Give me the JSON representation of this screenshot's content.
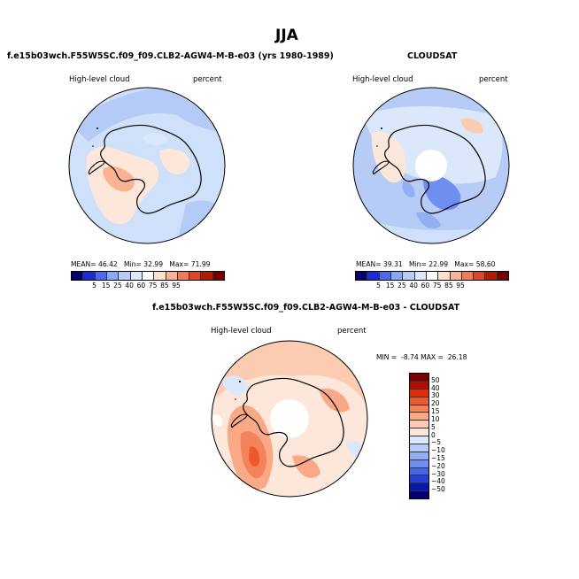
{
  "figure": {
    "season_title": "JJA",
    "model_title": "f.e15b03wch.F55W5SC.f09_f09.CLB2-AGW4-M-B-e03 (yrs 1980-1989)",
    "obs_title": "CLOUDSAT",
    "diff_title": "f.e15b03wch.F55W5SC.f09_f09.CLB2-AGW4-M-B-e03 - CLOUDSAT"
  },
  "panels": {
    "model": {
      "variable": "High-level cloud",
      "units": "percent",
      "stats_text": {
        "mean_label": "MEAN=",
        "mean": "46.42",
        "min_label": "Min=",
        "min": "32.99",
        "max_label": "Max=",
        "max": "71.99"
      }
    },
    "obs": {
      "variable": "High-level cloud",
      "units": "percent",
      "stats_text": {
        "mean_label": "MEAN=",
        "mean": "39.31",
        "min_label": "Min=",
        "min": "22.99",
        "max_label": "Max=",
        "max": "58.60"
      }
    },
    "diff": {
      "variable": "High-level cloud",
      "units": "percent",
      "minmax_text": "MIN =  -8.74 MAX =  26.18"
    }
  },
  "chart_data": [
    {
      "type": "heatmap",
      "title": "High-level cloud (model)",
      "units": "percent",
      "projection": "south polar stereographic",
      "region": "Antarctica / Southern Ocean",
      "mean": 46.42,
      "min": 32.99,
      "max": 71.99,
      "colorbar_levels": [
        5,
        15,
        25,
        40,
        60,
        75,
        85,
        95
      ],
      "colorbar_tick_labels": [
        "5",
        "15",
        "25",
        "40",
        "60",
        "75",
        "85",
        "95"
      ],
      "colorbar_colors": [
        "#08006a",
        "#1c2ad0",
        "#4a6af0",
        "#86a8f6",
        "#b6cdf8",
        "#dbe8fb",
        "#ffffff",
        "#fde0cb",
        "#f9b292",
        "#f07c56",
        "#dd4727",
        "#b01c0a",
        "#760000"
      ]
    },
    {
      "type": "heatmap",
      "title": "High-level cloud (CLOUDSAT)",
      "units": "percent",
      "projection": "south polar stereographic",
      "region": "Antarctica / Southern Ocean",
      "mean": 39.31,
      "min": 22.99,
      "max": 58.6,
      "colorbar_levels": [
        5,
        15,
        25,
        40,
        60,
        75,
        85,
        95
      ],
      "colorbar_tick_labels": [
        "5",
        "15",
        "25",
        "40",
        "60",
        "75",
        "85",
        "95"
      ],
      "colorbar_colors": [
        "#08006a",
        "#1c2ad0",
        "#4a6af0",
        "#86a8f6",
        "#b6cdf8",
        "#dbe8fb",
        "#ffffff",
        "#fde0cb",
        "#f9b292",
        "#f07c56",
        "#dd4727",
        "#b01c0a",
        "#760000"
      ]
    },
    {
      "type": "heatmap",
      "title": "High-level cloud (model - CLOUDSAT)",
      "units": "percent",
      "projection": "south polar stereographic",
      "region": "Antarctica / Southern Ocean",
      "min": -8.74,
      "max": 26.18,
      "colorbar_levels": [
        50,
        40,
        30,
        20,
        15,
        10,
        5,
        0,
        -5,
        -10,
        -15,
        -20,
        -30,
        -40,
        -50
      ],
      "colorbar_tick_labels": [
        "50",
        "40",
        "30",
        "20",
        "15",
        "10",
        "5",
        "0",
        "−5",
        "−10",
        "−15",
        "−20",
        "−30",
        "−40",
        "−50"
      ],
      "colorbar_colors": [
        "#7a0000",
        "#b20d00",
        "#d8300a",
        "#ec5a2c",
        "#f4825a",
        "#f9a985",
        "#fcccb2",
        "#fde7da",
        "#dbe8fb",
        "#b7cbf7",
        "#93aef3",
        "#6e8ff0",
        "#4466ea",
        "#2440d8",
        "#0a18a8",
        "#00007a"
      ]
    }
  ]
}
